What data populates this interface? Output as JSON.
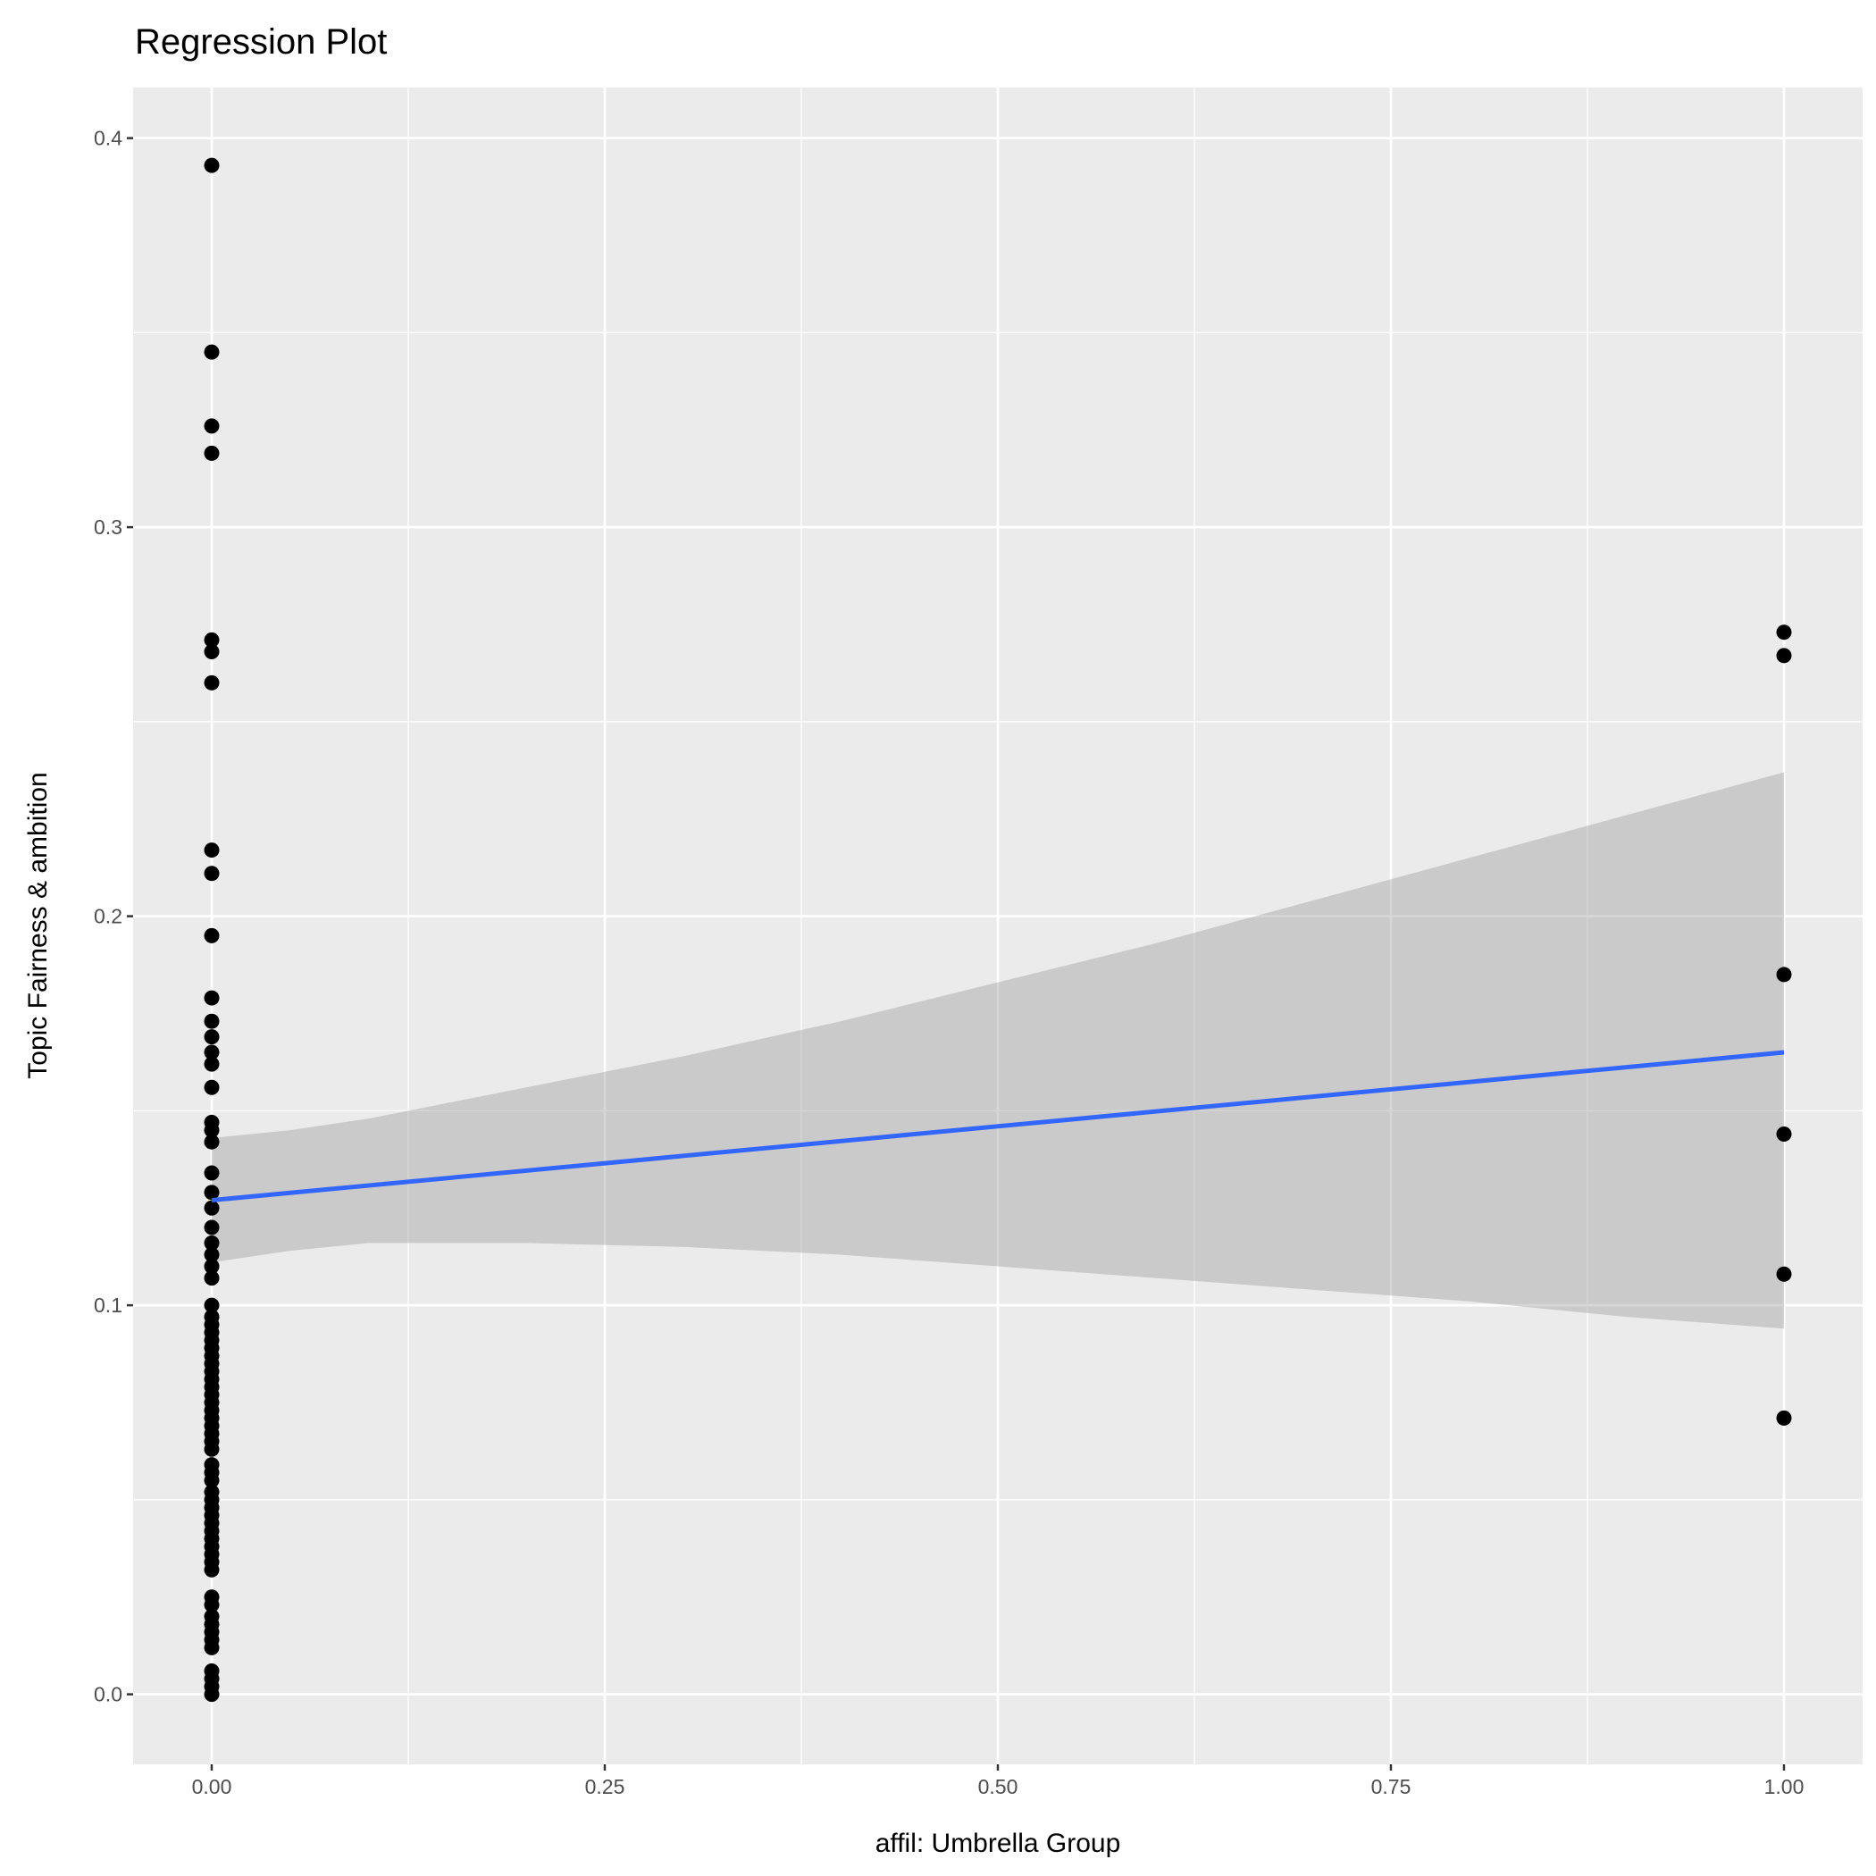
{
  "chart_data": {
    "type": "scatter",
    "title": "Regression Plot",
    "xlabel": "affil: Umbrella Group",
    "ylabel": "Topic Fairness & ambition",
    "xlim": [
      -0.05,
      1.05
    ],
    "ylim": [
      -0.018,
      0.413
    ],
    "xticks": [
      0,
      0.25,
      0.5,
      0.75,
      1
    ],
    "xtick_labels": [
      "0.00",
      "0.25",
      "0.50",
      "0.75",
      "1.00"
    ],
    "yticks": [
      0,
      0.1,
      0.2,
      0.3,
      0.4
    ],
    "ytick_labels": [
      "0.0",
      "0.1",
      "0.2",
      "0.3",
      "0.4"
    ],
    "grid": true,
    "points": {
      "x0": [
        0.393,
        0.345,
        0.326,
        0.319,
        0.271,
        0.268,
        0.26,
        0.217,
        0.211,
        0.195,
        0.179,
        0.173,
        0.169,
        0.165,
        0.162,
        0.156,
        0.147,
        0.145,
        0.142,
        0.134,
        0.129,
        0.125,
        0.12,
        0.116,
        0.113,
        0.11,
        0.107,
        0.1,
        0.097,
        0.095,
        0.093,
        0.091,
        0.089,
        0.087,
        0.085,
        0.083,
        0.081,
        0.079,
        0.077,
        0.075,
        0.073,
        0.071,
        0.069,
        0.067,
        0.065,
        0.063,
        0.059,
        0.057,
        0.055,
        0.052,
        0.05,
        0.048,
        0.046,
        0.044,
        0.042,
        0.04,
        0.038,
        0.036,
        0.034,
        0.032,
        0.025,
        0.023,
        0.02,
        0.018,
        0.016,
        0.014,
        0.012,
        0.006,
        0.004,
        0.002,
        0.0
      ],
      "x1": [
        0.273,
        0.267,
        0.185,
        0.144,
        0.108,
        0.071
      ]
    },
    "regression": {
      "x": [
        0,
        1
      ],
      "y": [
        0.127,
        0.165
      ],
      "color": "#3366FF"
    },
    "confidence_band": {
      "x": [
        0,
        0.05,
        0.1,
        0.15,
        0.2,
        0.3,
        0.4,
        0.5,
        0.6,
        0.7,
        0.8,
        0.9,
        1.0
      ],
      "upper": [
        0.143,
        0.145,
        0.148,
        0.152,
        0.156,
        0.164,
        0.173,
        0.183,
        0.193,
        0.204,
        0.215,
        0.226,
        0.237
      ],
      "lower": [
        0.111,
        0.114,
        0.116,
        0.116,
        0.116,
        0.115,
        0.113,
        0.11,
        0.107,
        0.104,
        0.101,
        0.097,
        0.094
      ]
    },
    "colors": {
      "panel": "#EBEBEB",
      "grid": "#FFFFFF",
      "point": "#000000",
      "band": "#999999"
    }
  }
}
